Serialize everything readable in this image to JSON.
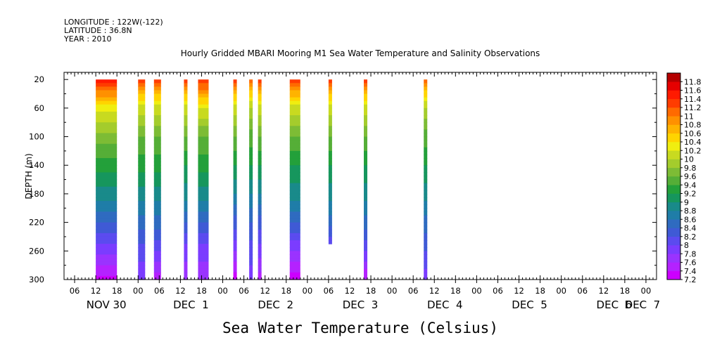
{
  "header": {
    "longitude": "LONGITUDE : 122W(-122)",
    "latitude": "LATITUDE : 36.8N",
    "year": "YEAR : 2010"
  },
  "chart_data": {
    "type": "heatmap",
    "title": "Hourly Gridded MBARI Mooring M1 Sea Water Temperature and Salinity Observations",
    "xlabel": "Sea Water Temperature (Celsius)",
    "ylabel": "DEPTH (m)",
    "x_units": "hours since NOV 30 00:00 (2010)",
    "xlim": [
      3,
      171
    ],
    "ylim": [
      300,
      10
    ],
    "y_ticks": [
      20,
      60,
      100,
      140,
      180,
      220,
      260,
      300
    ],
    "hour_tick_labels": [
      "06",
      "12",
      "18",
      "00",
      "06",
      "12",
      "18",
      "00",
      "06",
      "12",
      "18",
      "00",
      "06",
      "12",
      "18",
      "00",
      "06",
      "12",
      "18",
      "00",
      "06",
      "12",
      "18",
      "00",
      "06",
      "12",
      "18",
      "00"
    ],
    "day_labels": [
      "NOV 30",
      "DEC  1",
      "DEC  2",
      "DEC  3",
      "DEC  4",
      "DEC  5",
      "DEC  6",
      "DEC  7"
    ],
    "colorbar_levels": [
      7.2,
      7.4,
      7.6,
      7.8,
      8,
      8.2,
      8.4,
      8.6,
      8.8,
      9,
      9.2,
      9.4,
      9.6,
      9.8,
      10,
      10.2,
      10.4,
      10.6,
      10.8,
      11,
      11.2,
      11.4,
      11.6,
      11.8
    ],
    "colorbar_colors": [
      "#cc00ff",
      "#b422ff",
      "#9a33ff",
      "#7b3cff",
      "#5b4bef",
      "#3f5ad5",
      "#2f6bc0",
      "#1f7da8",
      "#198a8a",
      "#16965d",
      "#23a03a",
      "#55ae37",
      "#7dbc35",
      "#a4cc2c",
      "#c8da20",
      "#f0ee10",
      "#ffd400",
      "#ffb300",
      "#ff9000",
      "#ff6a00",
      "#ff3c00",
      "#ff1a00",
      "#e60000",
      "#b40000"
    ],
    "blocks": [
      {
        "x": [
          12,
          18
        ],
        "depth": [
          20,
          300
        ],
        "profile": [
          [
            20,
            11.6
          ],
          [
            40,
            10.9
          ],
          [
            60,
            10.3
          ],
          [
            100,
            9.7
          ],
          [
            140,
            9.3
          ],
          [
            180,
            8.9
          ],
          [
            220,
            8.4
          ],
          [
            260,
            7.9
          ],
          [
            300,
            7.35
          ]
        ]
      },
      {
        "x": [
          24,
          26
        ],
        "depth": [
          20,
          300
        ],
        "profile": [
          [
            20,
            11.3
          ],
          [
            40,
            10.6
          ],
          [
            60,
            10.1
          ],
          [
            100,
            9.6
          ],
          [
            140,
            9.3
          ],
          [
            180,
            8.9
          ],
          [
            220,
            8.5
          ],
          [
            260,
            8.1
          ],
          [
            300,
            7.8
          ]
        ]
      },
      {
        "x": [
          28.5,
          30.5
        ],
        "depth": [
          20,
          300
        ],
        "profile": [
          [
            20,
            11.3
          ],
          [
            40,
            10.6
          ],
          [
            60,
            10.1
          ],
          [
            100,
            9.6
          ],
          [
            140,
            9.3
          ],
          [
            180,
            8.9
          ],
          [
            220,
            8.5
          ],
          [
            260,
            8.0
          ],
          [
            300,
            7.5
          ]
        ]
      },
      {
        "x": [
          37,
          38
        ],
        "depth": [
          20,
          300
        ],
        "profile": [
          [
            20,
            11.5
          ],
          [
            40,
            10.6
          ],
          [
            60,
            10.1
          ],
          [
            100,
            9.6
          ],
          [
            140,
            9.2
          ],
          [
            180,
            8.9
          ],
          [
            220,
            8.4
          ],
          [
            260,
            7.9
          ],
          [
            300,
            7.6
          ]
        ]
      },
      {
        "x": [
          41,
          44
        ],
        "depth": [
          20,
          300
        ],
        "profile": [
          [
            20,
            11.4
          ],
          [
            40,
            10.8
          ],
          [
            60,
            10.2
          ],
          [
            100,
            9.6
          ],
          [
            140,
            9.3
          ],
          [
            180,
            8.9
          ],
          [
            220,
            8.4
          ],
          [
            260,
            7.9
          ],
          [
            300,
            7.6
          ]
        ]
      },
      {
        "x": [
          51,
          52
        ],
        "depth": [
          20,
          300
        ],
        "profile": [
          [
            20,
            11.4
          ],
          [
            40,
            10.6
          ],
          [
            60,
            10.1
          ],
          [
            100,
            9.6
          ],
          [
            140,
            9.2
          ],
          [
            180,
            8.8
          ],
          [
            220,
            8.3
          ],
          [
            260,
            7.8
          ],
          [
            300,
            7.25
          ]
        ]
      },
      {
        "x": [
          55.5,
          56.5
        ],
        "depth": [
          20,
          300
        ],
        "profile": [
          [
            20,
            11.2
          ],
          [
            40,
            10.5
          ],
          [
            60,
            10.0
          ],
          [
            100,
            9.5
          ],
          [
            140,
            9.2
          ],
          [
            180,
            8.8
          ],
          [
            220,
            8.4
          ],
          [
            260,
            8.1
          ],
          [
            300,
            7.9
          ]
        ]
      },
      {
        "x": [
          58,
          59
        ],
        "depth": [
          20,
          300
        ],
        "profile": [
          [
            20,
            11.4
          ],
          [
            40,
            10.6
          ],
          [
            60,
            10.1
          ],
          [
            100,
            9.6
          ],
          [
            140,
            9.2
          ],
          [
            180,
            8.8
          ],
          [
            220,
            8.3
          ],
          [
            260,
            7.9
          ],
          [
            300,
            7.5
          ]
        ]
      },
      {
        "x": [
          67,
          70
        ],
        "depth": [
          20,
          300
        ],
        "profile": [
          [
            20,
            11.4
          ],
          [
            40,
            10.7
          ],
          [
            60,
            10.1
          ],
          [
            100,
            9.6
          ],
          [
            140,
            9.2
          ],
          [
            180,
            8.9
          ],
          [
            220,
            8.4
          ],
          [
            260,
            7.8
          ],
          [
            300,
            7.3
          ]
        ]
      },
      {
        "x": [
          78,
          79
        ],
        "depth": [
          20,
          250
        ],
        "profile": [
          [
            20,
            11.3
          ],
          [
            40,
            10.6
          ],
          [
            60,
            10.1
          ],
          [
            100,
            9.6
          ],
          [
            140,
            9.2
          ],
          [
            180,
            8.9
          ],
          [
            220,
            8.5
          ],
          [
            250,
            8.1
          ]
        ]
      },
      {
        "x": [
          88,
          89
        ],
        "depth": [
          20,
          300
        ],
        "profile": [
          [
            20,
            11.3
          ],
          [
            40,
            10.6
          ],
          [
            60,
            10.1
          ],
          [
            100,
            9.6
          ],
          [
            140,
            9.2
          ],
          [
            180,
            8.9
          ],
          [
            220,
            8.5
          ],
          [
            260,
            8.0
          ],
          [
            300,
            7.4
          ]
        ]
      },
      {
        "x": [
          105,
          106
        ],
        "depth": [
          20,
          300
        ],
        "profile": [
          [
            20,
            11.2
          ],
          [
            40,
            10.5
          ],
          [
            60,
            10.0
          ],
          [
            100,
            9.5
          ],
          [
            140,
            9.2
          ],
          [
            180,
            8.9
          ],
          [
            220,
            8.5
          ],
          [
            260,
            8.2
          ],
          [
            300,
            7.9
          ]
        ]
      }
    ]
  }
}
